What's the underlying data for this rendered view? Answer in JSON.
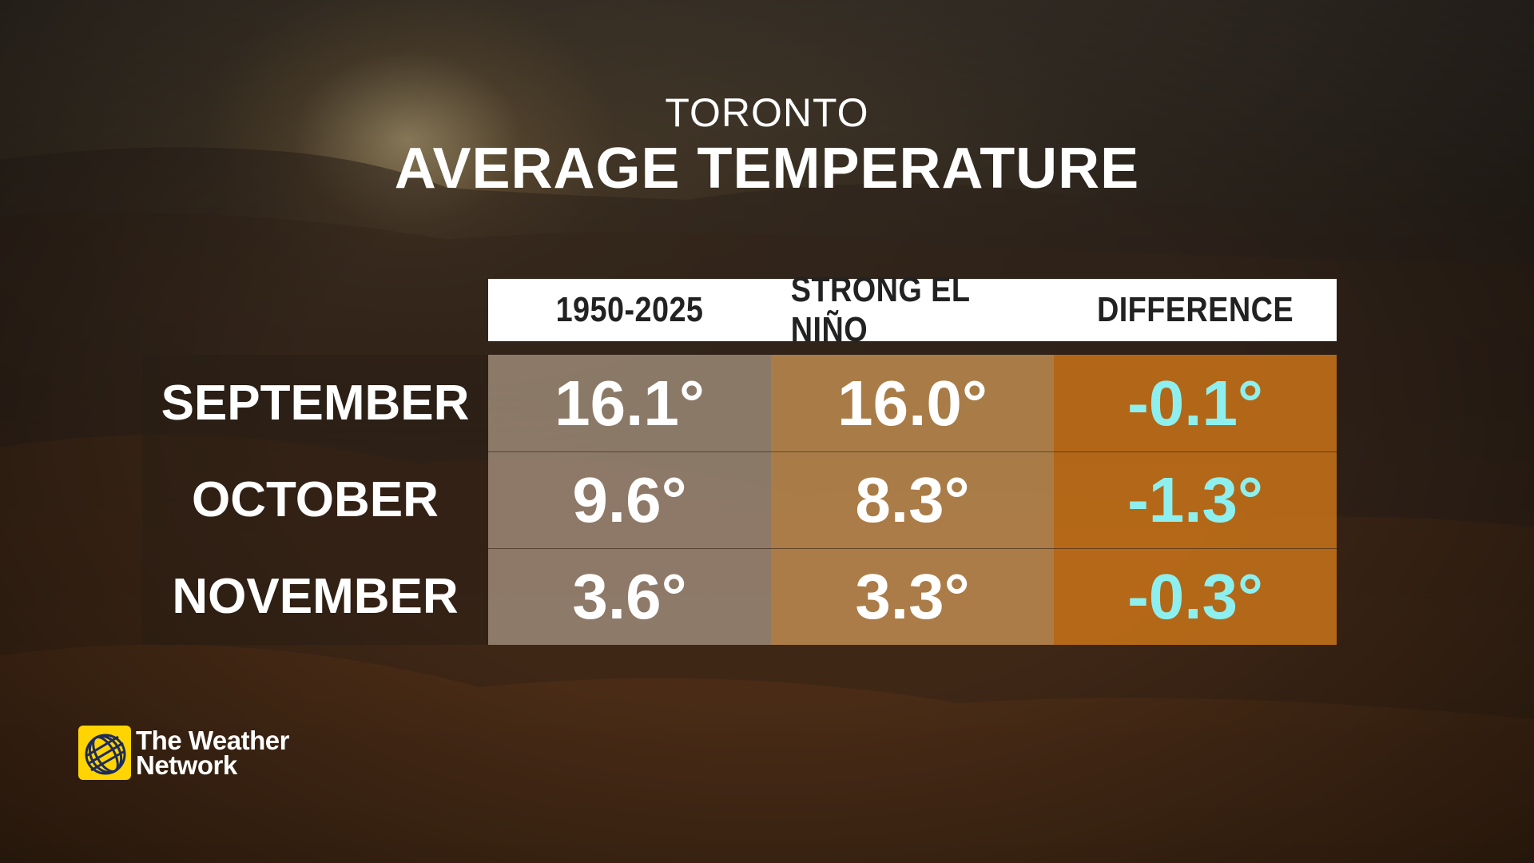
{
  "header": {
    "subtitle": "TORONTO",
    "title": "AVERAGE TEMPERATURE"
  },
  "chart_data": {
    "type": "table",
    "title": "AVERAGE TEMPERATURE",
    "subtitle": "TORONTO",
    "columns": [
      "1950-2025",
      "STRONG EL NIÑO",
      "DIFFERENCE"
    ],
    "rows": [
      {
        "label": "SEPTEMBER",
        "values": [
          "16.1°",
          "16.0°",
          "-0.1°"
        ]
      },
      {
        "label": "OCTOBER",
        "values": [
          "9.6°",
          "8.3°",
          "-1.3°"
        ]
      },
      {
        "label": "NOVEMBER",
        "values": [
          "3.6°",
          "3.3°",
          "-0.3°"
        ]
      }
    ],
    "colors": {
      "column_1950_2025": "#a08c7a",
      "column_strong_el_nino": "#be8c50",
      "column_difference": "#be6e19",
      "difference_text": "#8ef0ee",
      "header_background": "#ffffff",
      "header_text": "#222222"
    }
  },
  "logo": {
    "line1": "The Weather",
    "line2": "Network",
    "icon": "weather-network-globe-logo"
  }
}
